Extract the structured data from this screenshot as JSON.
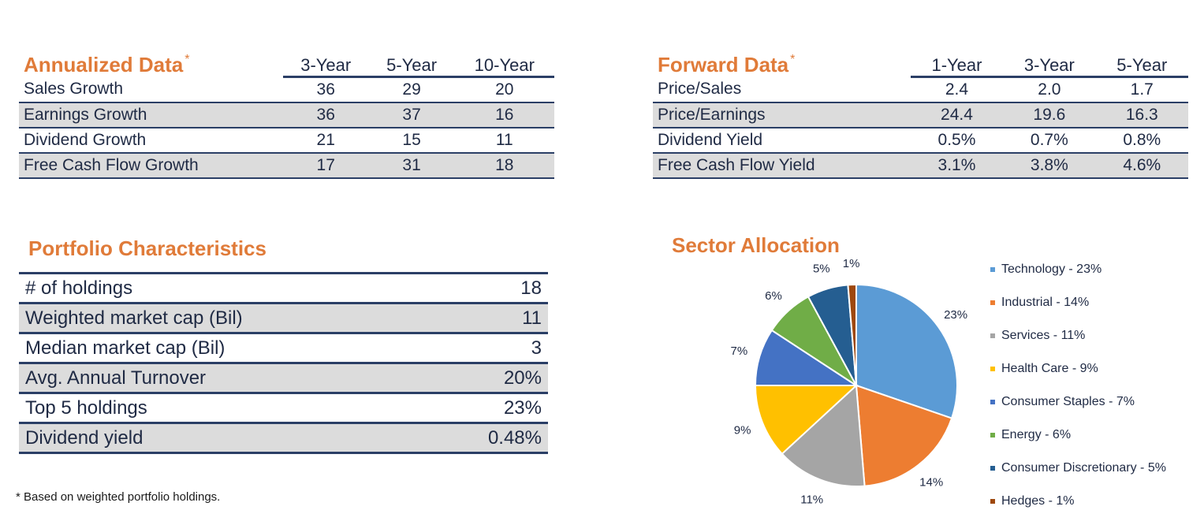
{
  "annualized": {
    "title": "Annualized Data",
    "asterisk": "*",
    "columns": [
      "3-Year",
      "5-Year",
      "10-Year"
    ],
    "rows": [
      {
        "label": "Sales Growth",
        "values": [
          "36",
          "29",
          "20"
        ]
      },
      {
        "label": "Earnings Growth",
        "values": [
          "36",
          "37",
          "16"
        ]
      },
      {
        "label": "Dividend Growth",
        "values": [
          "21",
          "15",
          "11"
        ]
      },
      {
        "label": "Free Cash Flow Growth",
        "values": [
          "17",
          "31",
          "18"
        ]
      }
    ]
  },
  "forward": {
    "title": "Forward Data",
    "asterisk": "*",
    "columns": [
      "1-Year",
      "3-Year",
      "5-Year"
    ],
    "rows": [
      {
        "label": "Price/Sales",
        "values": [
          "2.4",
          "2.0",
          "1.7"
        ]
      },
      {
        "label": "Price/Earnings",
        "values": [
          "24.4",
          "19.6",
          "16.3"
        ]
      },
      {
        "label": "Dividend Yield",
        "values": [
          "0.5%",
          "0.7%",
          "0.8%"
        ]
      },
      {
        "label": "Free Cash Flow Yield",
        "values": [
          "3.1%",
          "3.8%",
          "4.6%"
        ]
      }
    ]
  },
  "portfolio": {
    "title": "Portfolio Characteristics",
    "rows": [
      {
        "label": "# of holdings",
        "value": "18"
      },
      {
        "label": "Weighted market cap (Bil)",
        "value": "11"
      },
      {
        "label": "Median market cap (Bil)",
        "value": "3"
      },
      {
        "label": "Avg. Annual Turnover",
        "value": "20%"
      },
      {
        "label": "Top 5 holdings",
        "value": "23%"
      },
      {
        "label": "Dividend yield",
        "value": "0.48%"
      }
    ]
  },
  "footnote": {
    "mark": "*",
    "text": "Based on weighted portfolio holdings."
  },
  "chart_data": {
    "type": "pie",
    "title": "Sector Allocation",
    "categories": [
      "Technology",
      "Industrial",
      "Services",
      "Health Care",
      "Consumer Staples",
      "Energy",
      "Consumer Discretionary",
      "Hedges"
    ],
    "values": [
      23,
      14,
      11,
      9,
      7,
      6,
      5,
      1
    ],
    "slice_labels": [
      "23%",
      "14%",
      "11%",
      "9%",
      "7%",
      "6%",
      "5%",
      "1%"
    ],
    "legend_labels": [
      "Technology - 23%",
      "Industrial - 14%",
      "Services - 11%",
      "Health Care - 9%",
      "Consumer Staples - 7%",
      "Energy - 6%",
      "Consumer Discretionary - 5%",
      "Hedges - 1%"
    ],
    "colors": [
      "#5b9bd5",
      "#ed7d31",
      "#a5a5a5",
      "#ffc000",
      "#4472c4",
      "#70ad47",
      "#255e91",
      "#9e480e"
    ],
    "legend_position": "right"
  }
}
